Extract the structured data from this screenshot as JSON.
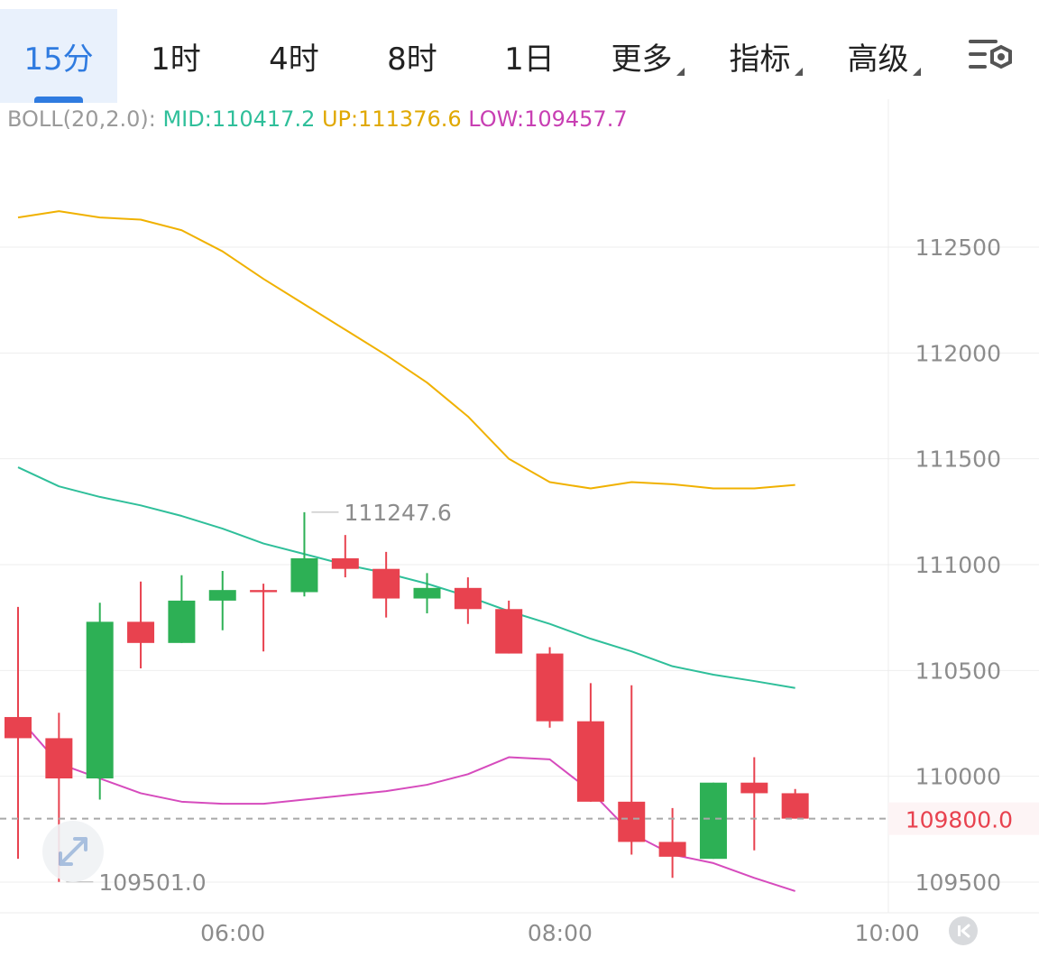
{
  "tabs": [
    {
      "label": "15分",
      "active": true,
      "dropdown": false
    },
    {
      "label": "1时",
      "active": false,
      "dropdown": false
    },
    {
      "label": "4时",
      "active": false,
      "dropdown": false
    },
    {
      "label": "8时",
      "active": false,
      "dropdown": false
    },
    {
      "label": "1日",
      "active": false,
      "dropdown": false
    },
    {
      "label": "更多",
      "active": false,
      "dropdown": true
    },
    {
      "label": "指标",
      "active": false,
      "dropdown": true
    },
    {
      "label": "高级",
      "active": false,
      "dropdown": true
    }
  ],
  "indicator": {
    "prefix": "BOLL(20,2.0):",
    "mid": "MID:110417.2",
    "up": "UP:111376.6",
    "low": "LOW:109457.7"
  },
  "colors": {
    "up_candle": "#2db055",
    "down_candle": "#e8424f",
    "mid_line": "#2fbf9a",
    "up_line": "#f0b100",
    "low_line": "#d64bbd",
    "active_tab": "#2f7be0",
    "axis_text": "#8c8c8c",
    "grid": "#eeeeee"
  },
  "icons": {
    "settings": "settings-gear-icon",
    "expand": "expand-arrows-icon",
    "back": "back-to-latest-icon"
  },
  "chart_data": {
    "type": "candlestick",
    "interval": "15分",
    "indicator": "BOLL(20,2.0)",
    "ylim": [
      109350,
      112850
    ],
    "y_ticks": [
      112500,
      112000,
      111500,
      111000,
      110500,
      110000,
      109500
    ],
    "y_tick_labels": [
      "112500",
      "112000",
      "111500",
      "111000",
      "110500",
      "110000",
      "109500"
    ],
    "x_ticks": [
      {
        "slot": 5.25,
        "label": "06:00"
      },
      {
        "slot": 13.25,
        "label": "08:00"
      },
      {
        "slot": 21.25,
        "label": "10:00"
      }
    ],
    "current_price": 109800.0,
    "current_price_label": "109800.0",
    "max_annotation": {
      "value": 111247.6,
      "label": "111247.6",
      "slot": 7
    },
    "min_annotation": {
      "value": 109501.0,
      "label": "109501.0",
      "slot": 1
    },
    "candles": [
      {
        "open": 110280,
        "high": 110800,
        "low": 109610,
        "close": 110180
      },
      {
        "open": 110180,
        "high": 110300,
        "low": 109501,
        "close": 109990
      },
      {
        "open": 109990,
        "high": 110820,
        "low": 109890,
        "close": 110730
      },
      {
        "open": 110730,
        "high": 110920,
        "low": 110510,
        "close": 110630
      },
      {
        "open": 110630,
        "high": 110950,
        "low": 110630,
        "close": 110830
      },
      {
        "open": 110830,
        "high": 110970,
        "low": 110690,
        "close": 110880
      },
      {
        "open": 110880,
        "high": 110910,
        "low": 110590,
        "close": 110870
      },
      {
        "open": 110870,
        "high": 111247.6,
        "low": 110850,
        "close": 111030
      },
      {
        "open": 111030,
        "high": 111140,
        "low": 110940,
        "close": 110980
      },
      {
        "open": 110980,
        "high": 111060,
        "low": 110750,
        "close": 110840
      },
      {
        "open": 110840,
        "high": 110960,
        "low": 110770,
        "close": 110890
      },
      {
        "open": 110890,
        "high": 110940,
        "low": 110720,
        "close": 110790
      },
      {
        "open": 110790,
        "high": 110830,
        "low": 110580,
        "close": 110580
      },
      {
        "open": 110580,
        "high": 110610,
        "low": 110230,
        "close": 110260
      },
      {
        "open": 110260,
        "high": 110440,
        "low": 109880,
        "close": 109880
      },
      {
        "open": 109880,
        "high": 110430,
        "low": 109630,
        "close": 109690
      },
      {
        "open": 109690,
        "high": 109850,
        "low": 109520,
        "close": 109620
      },
      {
        "open": 109610,
        "high": 109970,
        "low": 109610,
        "close": 109970
      },
      {
        "open": 109970,
        "high": 110090,
        "low": 109650,
        "close": 109920
      },
      {
        "open": 109920,
        "high": 109940,
        "low": 109800,
        "close": 109800
      }
    ],
    "series": [
      {
        "name": "MID",
        "values": [
          111460,
          111370,
          111320,
          111280,
          111230,
          111170,
          111100,
          111050,
          111000,
          110960,
          110910,
          110850,
          110780,
          110720,
          110650,
          110590,
          110520,
          110480,
          110450,
          110417.2
        ]
      },
      {
        "name": "UP",
        "values": [
          112640,
          112670,
          112640,
          112630,
          112580,
          112480,
          112350,
          112230,
          112110,
          111990,
          111860,
          111700,
          111500,
          111390,
          111360,
          111390,
          111380,
          111360,
          111360,
          111376.6
        ]
      },
      {
        "name": "LOW",
        "values": [
          110280,
          110060,
          109990,
          109920,
          109880,
          109870,
          109870,
          109890,
          109910,
          109930,
          109960,
          110010,
          110090,
          110080,
          109930,
          109730,
          109630,
          109590,
          109520,
          109457.7
        ]
      }
    ]
  }
}
